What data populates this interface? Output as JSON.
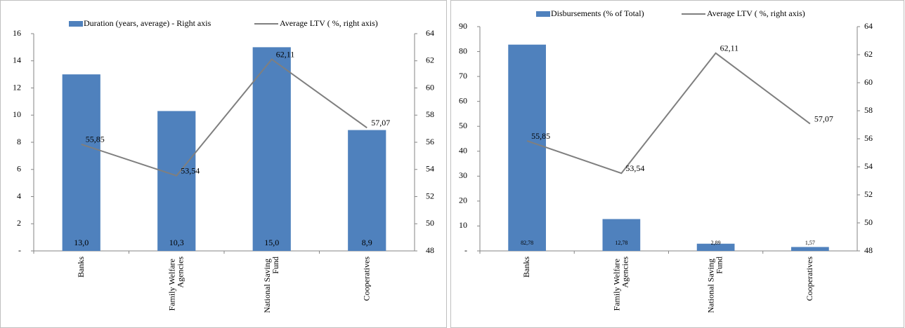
{
  "chart_data": [
    {
      "type": "bar",
      "categories": [
        "Banks",
        "Family Welfare Agencies",
        "National Saving Fund",
        "Cooperatives"
      ],
      "series": [
        {
          "name": "Duration (years, average) - Right axis",
          "color": "#4f81bd",
          "type": "bar",
          "values": [
            13.0,
            10.3,
            15.0,
            8.9
          ],
          "value_labels": [
            "13,0",
            "10,3",
            "15,0",
            "8,9"
          ]
        },
        {
          "name": "Average LTV ( %, right axis)",
          "color": "#7f7f7f",
          "type": "line",
          "axis": "y2",
          "values": [
            55.85,
            53.54,
            62.11,
            57.07
          ],
          "value_labels": [
            "55,85",
            "53,54",
            "62,11",
            "57,07"
          ]
        }
      ],
      "ylim": [
        0,
        16
      ],
      "yticks": [
        {
          "value": 0,
          "label": "-"
        },
        2,
        4,
        6,
        8,
        10,
        12,
        14,
        16
      ],
      "y2lim": [
        48,
        64
      ],
      "y2ticks": [
        48,
        50,
        52,
        54,
        56,
        58,
        60,
        62,
        64
      ]
    },
    {
      "type": "bar",
      "categories": [
        "Banks",
        "Family Welfare Agencies",
        "National Saving Fund",
        "Cooperatives"
      ],
      "series": [
        {
          "name": "Disbursements (% of Total)",
          "color": "#4f81bd",
          "type": "bar",
          "values": [
            82.78,
            12.78,
            2.89,
            1.57
          ],
          "value_labels": [
            "82,78",
            "12,78",
            "2,89",
            "1,57"
          ]
        },
        {
          "name": "Average LTV ( %, right axis)",
          "color": "#7f7f7f",
          "type": "line",
          "axis": "y2",
          "values": [
            55.85,
            53.54,
            62.11,
            57.07
          ],
          "value_labels": [
            "55,85",
            "53,54",
            "62,11",
            "57,07"
          ]
        }
      ],
      "ylim": [
        0,
        90
      ],
      "yticks": [
        {
          "value": 0,
          "label": "-"
        },
        10,
        20,
        30,
        40,
        50,
        60,
        70,
        80,
        90
      ],
      "y2lim": [
        48,
        64
      ],
      "y2ticks": [
        48,
        50,
        52,
        54,
        56,
        58,
        60,
        62,
        64
      ]
    }
  ]
}
